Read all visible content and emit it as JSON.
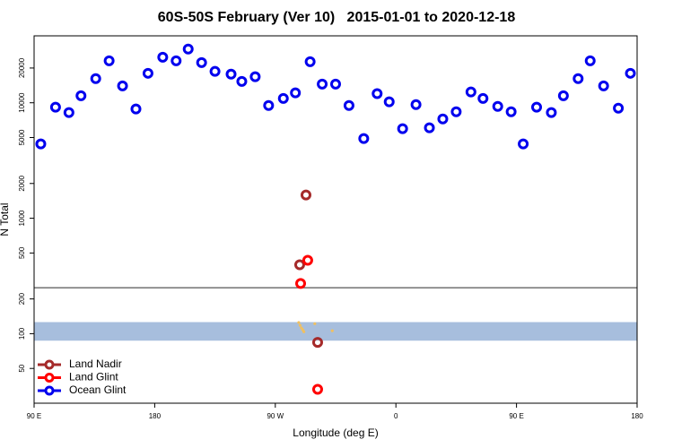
{
  "chart_data": {
    "type": "scatter",
    "title": "60S-50S February (Ver 10)   2015-01-01 to 2020-12-18",
    "xlabel": "Longitude (deg E)",
    "ylabel": "N Total",
    "log_y": true,
    "xlim": [
      90,
      540
    ],
    "ylim": [
      25,
      38000
    ],
    "xticks": [
      {
        "value": 90,
        "label": "90 E"
      },
      180,
      {
        "value": 270,
        "label": "90 W"
      },
      {
        "value": 360,
        "label": "0"
      },
      {
        "value": 450,
        "label": "90 E"
      },
      {
        "value": 540,
        "label": "180"
      }
    ],
    "yticks": [
      50,
      100,
      200,
      500,
      1000,
      2000,
      5000,
      10000,
      20000
    ],
    "band": [
      87,
      126
    ],
    "band_color": "#a7bedd",
    "hline": 250,
    "hline_color": "#555555",
    "legend": "bottomleft",
    "series": [
      {
        "name": "Land Nadir",
        "color": "#a52a2a",
        "x": [
          292.9,
          288.2,
          301.6
        ],
        "values": [
          1590,
          395,
          84
        ]
      },
      {
        "name": "Land Glint",
        "color": "#ff0000",
        "x": [
          294.2,
          288.9,
          301.6
        ],
        "values": [
          432,
          272,
          33
        ]
      },
      {
        "name": "Ocean Glint",
        "color": "#0000ee",
        "x": [
          95,
          106,
          116,
          125,
          136,
          146,
          156,
          166,
          175,
          186,
          196,
          205,
          215,
          225,
          237,
          245,
          255,
          265,
          276,
          285,
          296,
          305,
          315,
          325,
          336,
          346,
          355,
          365,
          375,
          385,
          395,
          405,
          416,
          425,
          436,
          446,
          455,
          465,
          476,
          485,
          496,
          505,
          515,
          526,
          535
        ],
        "values": [
          4400,
          9150,
          8220,
          11500,
          16200,
          23100,
          14000,
          8830,
          18000,
          24800,
          23100,
          29200,
          22300,
          18700,
          17700,
          15300,
          16800,
          9480,
          10900,
          12200,
          22700,
          14500,
          14500,
          9480,
          4900,
          12000,
          10200,
          5960,
          9650,
          6070,
          7250,
          8360,
          12400,
          10900,
          9310,
          8360,
          4400,
          9150,
          8220,
          11500,
          16200,
          23100,
          14000,
          8980,
          18000
        ]
      },
      {
        "color": "#f0c060",
        "x": [
          287.5,
          288.5,
          289.5,
          290.5,
          291.3,
          299.5,
          312.5
        ],
        "values": [
          125,
          118,
          112,
          108,
          104,
          122,
          106
        ]
      }
    ]
  }
}
